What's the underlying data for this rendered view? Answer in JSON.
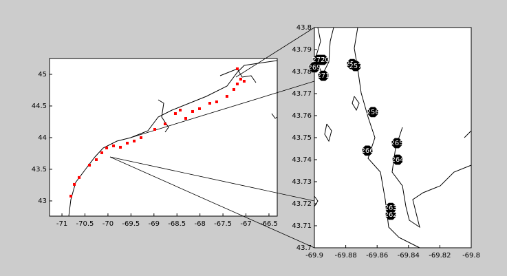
{
  "chart_data": [
    {
      "type": "scatter",
      "color": "#ff0000",
      "x": [
        -70.806,
        -70.731,
        -70.626,
        -70.402,
        -70.253,
        -70.133,
        -70.028,
        -69.879,
        -69.729,
        -69.58,
        -69.43,
        -69.281,
        -68.982,
        -68.758,
        -68.534,
        -68.429,
        -68.309,
        -68.16,
        -68.01,
        -67.786,
        -67.637,
        -67.413,
        -67.263,
        -67.188,
        -67.114,
        -67.039,
        -67.188
      ],
      "values": [
        43.076,
        43.261,
        43.37,
        43.565,
        43.652,
        43.761,
        43.837,
        43.87,
        43.848,
        43.913,
        43.946,
        44.0,
        44.13,
        44.217,
        44.38,
        44.435,
        44.304,
        44.413,
        44.457,
        44.543,
        44.565,
        44.652,
        44.761,
        44.848,
        44.924,
        44.891,
        45.087
      ],
      "xlim": [
        -71.27,
        -66.32
      ],
      "ylim": [
        42.76,
        45.25
      ],
      "xticks": [
        -71,
        -70.5,
        -70,
        -69.5,
        -69,
        -68.5,
        -68,
        -67.5,
        -67,
        -66.5
      ],
      "yticks": [
        43,
        43.5,
        44,
        44.5,
        45
      ]
    },
    {
      "type": "labeled-scatter",
      "color": "#000000",
      "labels": [
        "270",
        "272",
        "269",
        "271",
        "255",
        "257",
        "256",
        "266",
        "265",
        "264",
        "263",
        "262"
      ],
      "x": [
        -69.8947,
        -69.8974,
        -69.9,
        -69.8943,
        -69.8759,
        -69.8737,
        -69.8627,
        -69.8662,
        -69.8474,
        -69.8469,
        -69.8513,
        -69.8513
      ],
      "values": [
        43.7853,
        43.7853,
        43.7819,
        43.7781,
        43.7834,
        43.7825,
        43.7616,
        43.7441,
        43.7475,
        43.74,
        43.7181,
        43.715
      ],
      "xlim": [
        -69.9,
        -69.8
      ],
      "ylim": [
        43.7,
        43.8
      ],
      "xticks": [
        -69.9,
        -69.88,
        -69.86,
        -69.84,
        -69.82,
        -69.8
      ],
      "yticks": [
        43.7,
        43.71,
        43.72,
        43.73,
        43.74,
        43.75,
        43.76,
        43.77,
        43.78,
        43.79,
        43.8
      ]
    }
  ]
}
